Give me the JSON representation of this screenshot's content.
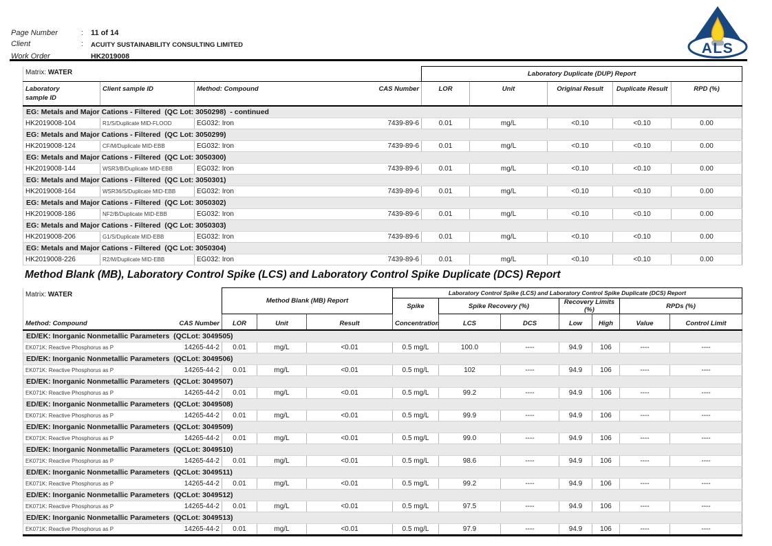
{
  "header": {
    "rows": [
      {
        "label": "Page Number",
        "sep": ":",
        "value": "11 of 14"
      },
      {
        "label": "Client",
        "sep": ":",
        "value": "ACUITY SUSTAINABILITY CONSULTING LIMITED"
      },
      {
        "label": "Work Order",
        "sep": "",
        "value": "HK2019008"
      }
    ],
    "logo_text": "ALS",
    "logo_colors": {
      "navy": "#17477e",
      "yellow": "#f6d41f",
      "orange": "#ee9d2b",
      "gray": "#a7adb3"
    }
  },
  "dup_table": {
    "matrix_prefix": "Matrix: ",
    "matrix_value": "WATER",
    "group_header": "Laboratory Duplicate (DUP) Report",
    "columns": {
      "lab1": "Laboratory",
      "lab2": "sample ID",
      "client": "Client sample ID",
      "method": "Method: Compound",
      "cas": "CAS Number",
      "lor": "LOR",
      "unit": "Unit",
      "orig": "Original Result",
      "dup": "Duplicate Result",
      "rpd": "RPD (%)"
    },
    "sections": [
      {
        "title": "EG: Metals and Major Cations - Filtered  (QC Lot: 3050298)  - continued",
        "rows": [
          [
            "HK2019008-104",
            "R1/S/Duplicate MID-FLOOD",
            "EG032: Iron",
            "7439-89-6",
            "0.01",
            "mg/L",
            "<0.10",
            "<0.10",
            "0.00"
          ]
        ]
      },
      {
        "title": "EG: Metals and Major Cations - Filtered  (QC Lot: 3050299)",
        "rows": [
          [
            "HK2019008-124",
            "CF/M/Duplicate MID-EBB",
            "EG032: Iron",
            "7439-89-6",
            "0.01",
            "mg/L",
            "<0.10",
            "<0.10",
            "0.00"
          ]
        ]
      },
      {
        "title": "EG: Metals and Major Cations - Filtered  (QC Lot: 3050300)",
        "rows": [
          [
            "HK2019008-144",
            "WSR3/B/Duplicate MID-EBB",
            "EG032: Iron",
            "7439-89-6",
            "0.01",
            "mg/L",
            "<0.10",
            "<0.10",
            "0.00"
          ]
        ]
      },
      {
        "title": "EG: Metals and Major Cations - Filtered  (QC Lot: 3050301)",
        "rows": [
          [
            "HK2019008-164",
            "WSR36/S/Duplicate MID-EBB",
            "EG032: Iron",
            "7439-89-6",
            "0.01",
            "mg/L",
            "<0.10",
            "<0.10",
            "0.00"
          ]
        ]
      },
      {
        "title": "EG: Metals and Major Cations - Filtered  (QC Lot: 3050302)",
        "rows": [
          [
            "HK2019008-186",
            "NF2/B/Duplicate MID-EBB",
            "EG032: Iron",
            "7439-89-6",
            "0.01",
            "mg/L",
            "<0.10",
            "<0.10",
            "0.00"
          ]
        ]
      },
      {
        "title": "EG: Metals and Major Cations - Filtered  (QC Lot: 3050303)",
        "rows": [
          [
            "HK2019008-206",
            "G1/S/Duplicate MID-EBB",
            "EG032: Iron",
            "7439-89-6",
            "0.01",
            "mg/L",
            "<0.10",
            "<0.10",
            "0.00"
          ]
        ]
      },
      {
        "title": "EG: Metals and Major Cations - Filtered  (QC Lot: 3050304)",
        "rows": [
          [
            "HK2019008-226",
            "R2/M/Duplicate MID-EBB",
            "EG032: Iron",
            "7439-89-6",
            "0.01",
            "mg/L",
            "<0.10",
            "<0.10",
            "0.00"
          ]
        ]
      }
    ]
  },
  "mb_title": "Method Blank (MB), Laboratory Control Spike (LCS) and Laboratory Control Spike Duplicate (DCS) Report",
  "mb_table": {
    "matrix_prefix": "Matrix: ",
    "matrix_value": "WATER",
    "group_mb": "Method Blank (MB) Report",
    "group_lcs": "Laboratory Control Spike (LCS) and Laboratory Control Spike Duplicate (DCS) Report",
    "sub": {
      "spike_line1": "Spike",
      "spike_line2": "Concentration",
      "recovery": "Spike Recovery (%)",
      "limits": "Recovery Limits (%)",
      "rpds": "RPDs (%)"
    },
    "columns": {
      "method": "Method: Compound",
      "cas": "CAS Number",
      "lor": "LOR",
      "unit": "Unit",
      "result": "Result",
      "lcs": "LCS",
      "dcs": "DCS",
      "low": "Low",
      "high": "High",
      "value": "Value",
      "control": "Control Limit"
    },
    "sections": [
      {
        "title": "ED/EK: Inorganic Nonmetallic Parameters  (QCLot: 3049505)",
        "rows": [
          [
            "EK071K: Reactive Phosphorus as P",
            "14265-44-2",
            "0.01",
            "mg/L",
            "<0.01",
            "0.5 mg/L",
            "100.0",
            "----",
            "94.9",
            "106",
            "----",
            "----"
          ]
        ]
      },
      {
        "title": "ED/EK: Inorganic Nonmetallic Parameters  (QCLot: 3049506)",
        "rows": [
          [
            "EK071K: Reactive Phosphorus as P",
            "14265-44-2",
            "0.01",
            "mg/L",
            "<0.01",
            "0.5 mg/L",
            "102",
            "----",
            "94.9",
            "106",
            "----",
            "----"
          ]
        ]
      },
      {
        "title": "ED/EK: Inorganic Nonmetallic Parameters  (QCLot: 3049507)",
        "rows": [
          [
            "EK071K: Reactive Phosphorus as P",
            "14265-44-2",
            "0.01",
            "mg/L",
            "<0.01",
            "0.5 mg/L",
            "99.2",
            "----",
            "94.9",
            "106",
            "----",
            "----"
          ]
        ]
      },
      {
        "title": "ED/EK: Inorganic Nonmetallic Parameters  (QCLot: 3049508)",
        "rows": [
          [
            "EK071K: Reactive Phosphorus as P",
            "14265-44-2",
            "0.01",
            "mg/L",
            "<0.01",
            "0.5 mg/L",
            "99.9",
            "----",
            "94.9",
            "106",
            "----",
            "----"
          ]
        ]
      },
      {
        "title": "ED/EK: Inorganic Nonmetallic Parameters  (QCLot: 3049509)",
        "rows": [
          [
            "EK071K: Reactive Phosphorus as P",
            "14265-44-2",
            "0.01",
            "mg/L",
            "<0.01",
            "0.5 mg/L",
            "99.0",
            "----",
            "94.9",
            "106",
            "----",
            "----"
          ]
        ]
      },
      {
        "title": "ED/EK: Inorganic Nonmetallic Parameters  (QCLot: 3049510)",
        "rows": [
          [
            "EK071K: Reactive Phosphorus as P",
            "14265-44-2",
            "0.01",
            "mg/L",
            "<0.01",
            "0.5 mg/L",
            "98.6",
            "----",
            "94.9",
            "106",
            "----",
            "----"
          ]
        ]
      },
      {
        "title": "ED/EK: Inorganic Nonmetallic Parameters  (QCLot: 3049511)",
        "rows": [
          [
            "EK071K: Reactive Phosphorus as P",
            "14265-44-2",
            "0.01",
            "mg/L",
            "<0.01",
            "0.5 mg/L",
            "99.2",
            "----",
            "94.9",
            "106",
            "----",
            "----"
          ]
        ]
      },
      {
        "title": "ED/EK: Inorganic Nonmetallic Parameters  (QCLot: 3049512)",
        "rows": [
          [
            "EK071K: Reactive Phosphorus as P",
            "14265-44-2",
            "0.01",
            "mg/L",
            "<0.01",
            "0.5 mg/L",
            "97.5",
            "----",
            "94.9",
            "106",
            "----",
            "----"
          ]
        ]
      },
      {
        "title": "ED/EK: Inorganic Nonmetallic Parameters  (QCLot: 3049513)",
        "rows": [
          [
            "EK071K: Reactive Phosphorus as P",
            "14265-44-2",
            "0.01",
            "mg/L",
            "<0.01",
            "0.5 mg/L",
            "97.9",
            "----",
            "94.9",
            "106",
            "----",
            "----"
          ]
        ]
      }
    ]
  }
}
